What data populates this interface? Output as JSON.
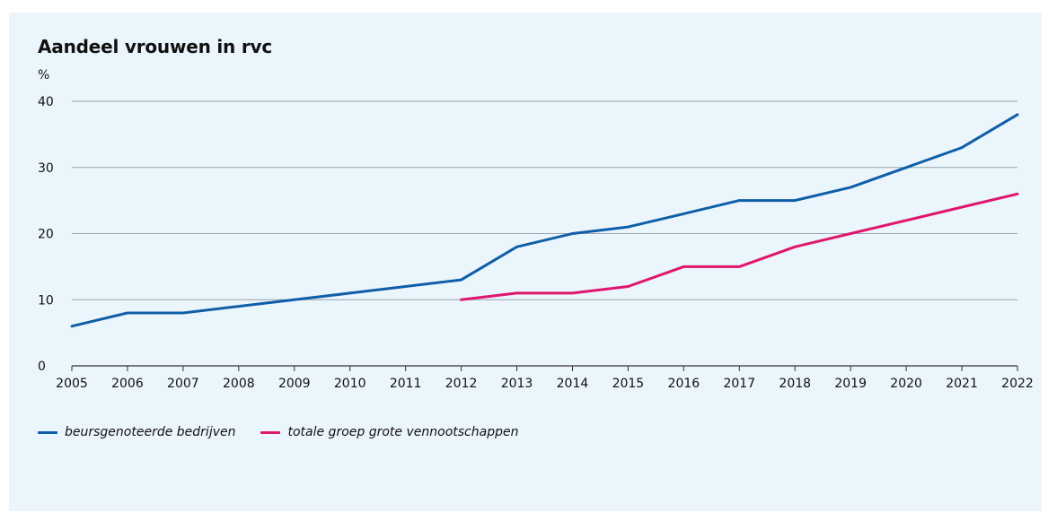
{
  "chart_data": {
    "type": "line",
    "title": "Aandeel vrouwen in rvc",
    "ylabel": "%",
    "xlabel": "",
    "ylim": [
      0,
      40
    ],
    "yticks": [
      0,
      10,
      20,
      30,
      40
    ],
    "categories": [
      "2005",
      "2006",
      "2007",
      "2008",
      "2009",
      "2010",
      "2011",
      "2012",
      "2013",
      "2014",
      "2015",
      "2016",
      "2017",
      "2018",
      "2019",
      "2020",
      "2021",
      "2022"
    ],
    "grid": "horizontal",
    "legend_position": "bottom-left",
    "series": [
      {
        "name": "beursgenoteerde bedrijven",
        "color": "#0f5ea8",
        "values": [
          6,
          8,
          8,
          9,
          10,
          11,
          12,
          13,
          18,
          20,
          21,
          23,
          25,
          25,
          27,
          30,
          33,
          38
        ]
      },
      {
        "name": "totale groep grote vennootschappen",
        "color": "#e0156e",
        "values": [
          null,
          null,
          null,
          null,
          null,
          null,
          null,
          10,
          11,
          11,
          12,
          15,
          15,
          18,
          20,
          22,
          24,
          26
        ]
      }
    ]
  }
}
